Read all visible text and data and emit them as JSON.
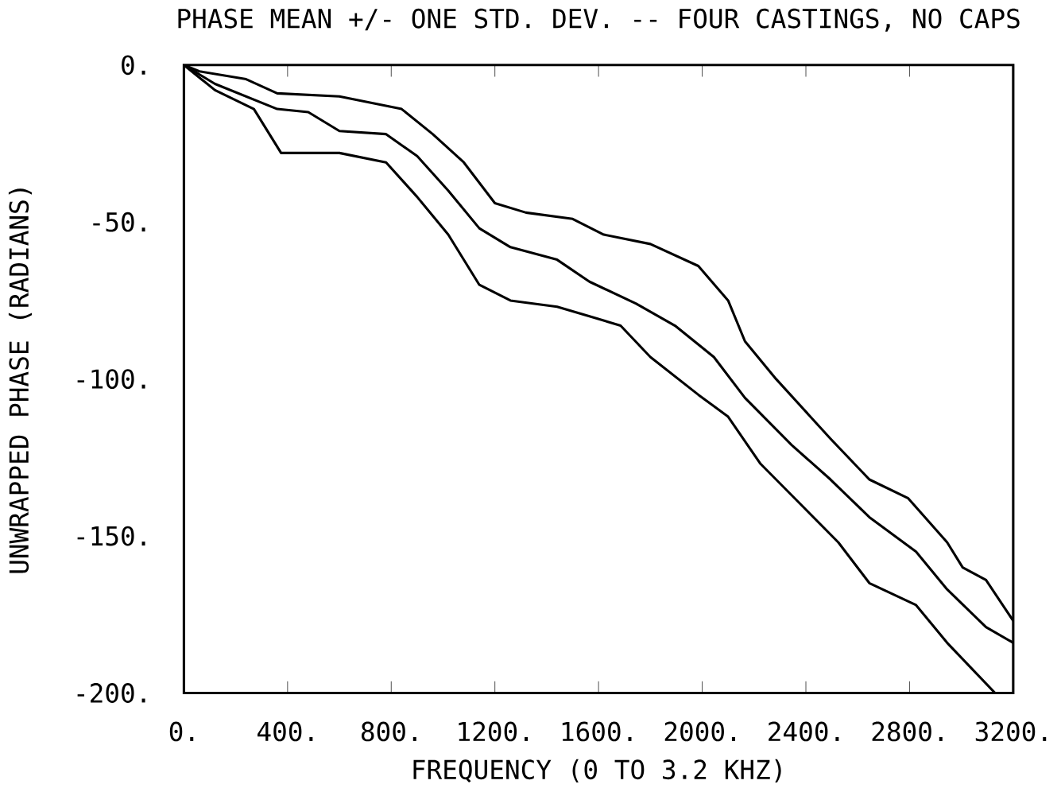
{
  "chart_data": {
    "type": "line",
    "title": "PHASE MEAN +/- ONE STD. DEV. -- FOUR CASTINGS, NO CAPS",
    "xlabel": "FREQUENCY (0 TO 3.2 KHZ)",
    "ylabel": "UNWRAPPED PHASE (RADIANS)",
    "color": "#000000",
    "grid": false,
    "marker": "none",
    "line_style": "solid",
    "xlim": [
      0,
      3200
    ],
    "ylim": [
      -200,
      0
    ],
    "xticks": [
      {
        "value": 0,
        "label": "0."
      },
      {
        "value": 400,
        "label": "400."
      },
      {
        "value": 800,
        "label": "800."
      },
      {
        "value": 1200,
        "label": "1200."
      },
      {
        "value": 1600,
        "label": "1600."
      },
      {
        "value": 2000,
        "label": "2000."
      },
      {
        "value": 2400,
        "label": "2400."
      },
      {
        "value": 2800,
        "label": "2800."
      },
      {
        "value": 3200,
        "label": "3200."
      }
    ],
    "yticks": [
      {
        "value": 0,
        "label": "0."
      },
      {
        "value": -50,
        "label": "-50."
      },
      {
        "value": -100,
        "label": "-100."
      },
      {
        "value": -150,
        "label": "-150."
      },
      {
        "value": -200,
        "label": "-200."
      }
    ],
    "series": [
      {
        "color": "#000000",
        "x": [
          0,
          60,
          240,
          360,
          600,
          840,
          960,
          1080,
          1200,
          1320,
          1500,
          1620,
          1800,
          1985,
          2100,
          2165,
          2285,
          2495,
          2645,
          2795,
          2945,
          3005,
          3095,
          3200
        ],
        "values": [
          0,
          -2,
          -4.5,
          -9,
          -10,
          -14,
          -22,
          -31,
          -44,
          -47,
          -49,
          -54,
          -57,
          -64,
          -75,
          -88,
          -100,
          -119,
          -132,
          -138,
          -152,
          -160,
          -164,
          -177
        ]
      },
      {
        "color": "#000000",
        "x": [
          0,
          120,
          240,
          360,
          480,
          600,
          780,
          900,
          1020,
          1140,
          1260,
          1440,
          1565,
          1745,
          1895,
          2045,
          2165,
          2345,
          2495,
          2645,
          2825,
          2945,
          3095,
          3200
        ],
        "values": [
          0,
          -6,
          -10,
          -14,
          -15,
          -21,
          -22,
          -29,
          -40,
          -52,
          -58,
          -62,
          -69,
          -76,
          -83,
          -93,
          -106,
          -121,
          -132,
          -144,
          -155,
          -167,
          -179,
          -184
        ]
      },
      {
        "color": "#000000",
        "x": [
          0,
          120,
          270,
          375,
          600,
          780,
          900,
          1020,
          1140,
          1260,
          1440,
          1565,
          1685,
          1800,
          1985,
          2100,
          2225,
          2345,
          2525,
          2645,
          2825,
          2945,
          3130
        ],
        "values": [
          0,
          -8,
          -14,
          -28,
          -28,
          -31,
          -42,
          -54,
          -70,
          -75,
          -77,
          -80,
          -83,
          -93,
          -105,
          -112,
          -127,
          -137,
          -152,
          -165,
          -172,
          -184,
          -200
        ]
      }
    ]
  }
}
